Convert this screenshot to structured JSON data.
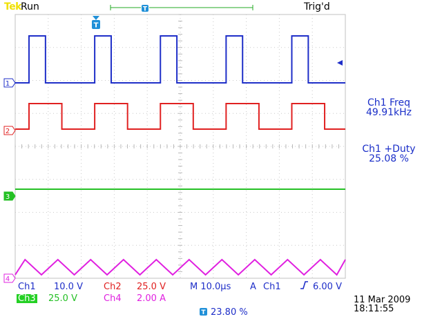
{
  "status": {
    "brand": "Tek",
    "acq_state": "Run",
    "trigger_state": "Trig'd"
  },
  "measurements": [
    {
      "label": "Ch1 Freq",
      "value": "49.91kHz"
    },
    {
      "label": "Ch1 +Duty",
      "value": "25.08 %"
    }
  ],
  "channels": [
    {
      "marker": "1",
      "scale_label": "Ch1",
      "scale": "10.0 V",
      "color": "#1e2ec8"
    },
    {
      "marker": "2",
      "scale_label": "Ch2",
      "scale": "25.0 V",
      "color": "#e02020"
    },
    {
      "marker": "3",
      "scale_label": "Ch3",
      "scale": "25.0 V",
      "color": "#24c024"
    },
    {
      "marker": "4",
      "scale_label": "Ch4",
      "scale": "2.00 A",
      "color": "#e020e0"
    }
  ],
  "horizontal": {
    "timebase": "M 10.0µs",
    "trigger_coupling": "A",
    "trigger_source": "Ch1",
    "trigger_slope_icon": "rising-edge-icon",
    "trigger_level": "6.00 V",
    "trigger_position": "23.80 %"
  },
  "timestamp": {
    "date": "11 Mar 2009",
    "time": "18:11:55"
  },
  "waveforms": {
    "period_divisions": 1.99,
    "ch1_duty": 0.2508,
    "ch2_duty": 0.5,
    "ch4_triangle_period_divisions": 0.994
  },
  "icons": {
    "trigger_marker": "trigger-t-icon",
    "trigger_level_arrow": "left-arrow-icon"
  }
}
